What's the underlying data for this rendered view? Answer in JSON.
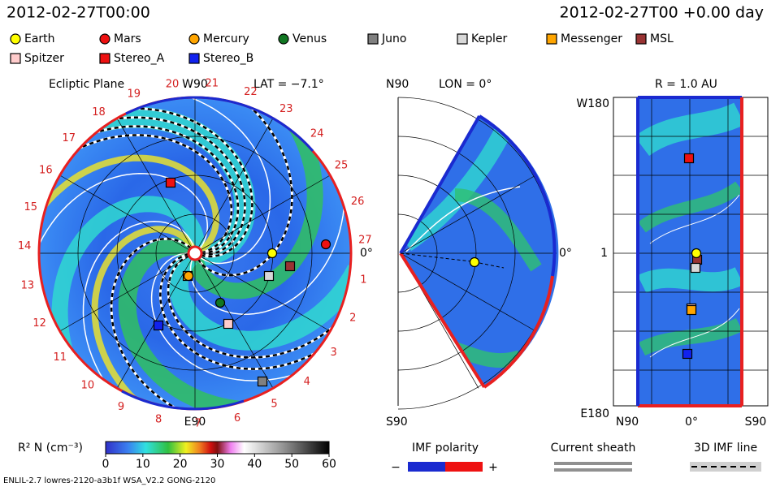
{
  "header": {
    "left": "2012-02-27T00:00",
    "right": "2012-02-27T00 +0.00 day"
  },
  "legend": [
    {
      "name": "Earth",
      "color": "#ffff00",
      "marker": "circle"
    },
    {
      "name": "Mars",
      "color": "#ee1111",
      "marker": "circle"
    },
    {
      "name": "Mercury",
      "color": "#ffa500",
      "marker": "circle"
    },
    {
      "name": "Venus",
      "color": "#117722",
      "marker": "circle"
    },
    {
      "name": "Juno",
      "color": "#808080",
      "marker": "square"
    },
    {
      "name": "Kepler",
      "color": "#d8d8d8",
      "marker": "square"
    },
    {
      "name": "Messenger",
      "color": "#ffa500",
      "marker": "square"
    },
    {
      "name": "MSL",
      "color": "#993333",
      "marker": "square"
    },
    {
      "name": "Spitzer",
      "color": "#ffcccc",
      "marker": "square"
    },
    {
      "name": "Stereo_A",
      "color": "#ee1111",
      "marker": "square"
    },
    {
      "name": "Stereo_B",
      "color": "#1122ee",
      "marker": "square"
    }
  ],
  "ecliptic": {
    "title": "Ecliptic Plane",
    "top": "W90",
    "lat": "LAT = −7.1°",
    "bottom": "E90",
    "right": "0°",
    "days": [
      1,
      2,
      3,
      4,
      5,
      6,
      7,
      8,
      9,
      10,
      11,
      12,
      13,
      14,
      15,
      16,
      17,
      18,
      19,
      20,
      21,
      22,
      23,
      24,
      25,
      26,
      27
    ]
  },
  "meridional": {
    "top": "N90",
    "lon": "LON = 0°",
    "right": "0°",
    "bottom": "S90"
  },
  "radial": {
    "title": "R = 1.0 AU",
    "top": "W180",
    "mid": "1",
    "bottom": "E180",
    "x_labels": [
      "N90",
      "0°",
      "S90"
    ]
  },
  "colorbar": {
    "label": "R² N (cm⁻³)",
    "lim": [
      0,
      60
    ],
    "ticks": [
      0,
      10,
      20,
      30,
      40,
      50,
      60
    ]
  },
  "imf": {
    "title": "IMF polarity",
    "minus": "−",
    "plus": "+"
  },
  "sheath": {
    "title": "Current sheath"
  },
  "imf_line": {
    "title": "3D IMF line"
  },
  "footer": "ENLIL-2.7 lowres-2120-a3b1f WSA_V2.2 GONG-2120"
}
